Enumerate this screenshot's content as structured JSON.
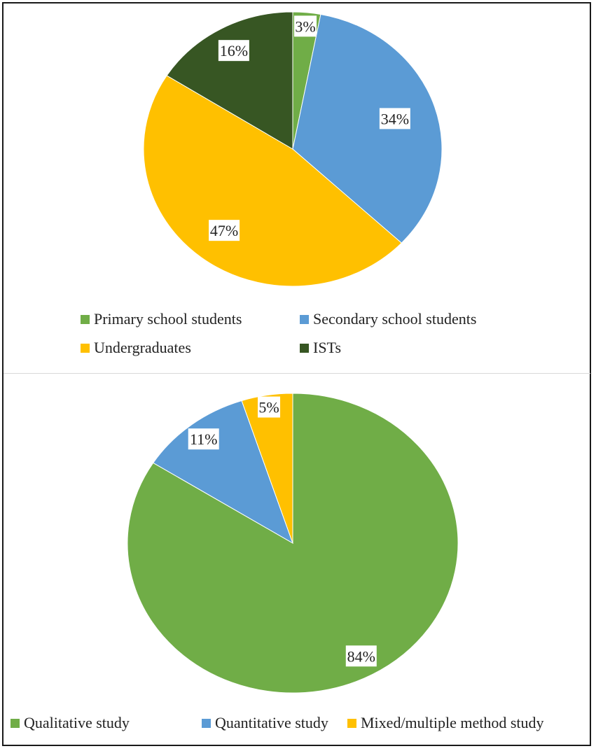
{
  "chart_data": [
    {
      "type": "pie",
      "title": "",
      "categories": [
        "Primary school students",
        "Secondary school students",
        "Undergraduates",
        "ISTs"
      ],
      "values": [
        3,
        34,
        47,
        16
      ],
      "labels": [
        "3%",
        "34%",
        "47%",
        "16%"
      ],
      "colors": [
        "#70ad47",
        "#5b9bd5",
        "#ffc000",
        "#375623"
      ],
      "start_angle_deg": 0,
      "direction": "clockwise",
      "legend_position": "bottom",
      "legend": {
        "rows": [
          [
            "Primary school students",
            "Secondary school students"
          ],
          [
            "Undergraduates",
            "ISTs"
          ]
        ]
      }
    },
    {
      "type": "pie",
      "title": "",
      "categories": [
        "Qualitative study",
        "Quantitative study",
        "Mixed/multiple method study"
      ],
      "values": [
        84,
        11,
        5
      ],
      "labels": [
        "84%",
        "11%",
        "5%"
      ],
      "colors": [
        "#70ad47",
        "#5b9bd5",
        "#ffc000"
      ],
      "start_angle_deg": 0,
      "direction": "clockwise",
      "legend_position": "bottom",
      "legend": {
        "rows": [
          [
            "Qualitative study",
            "Quantitative study",
            "Mixed/multiple method study"
          ]
        ]
      }
    }
  ]
}
